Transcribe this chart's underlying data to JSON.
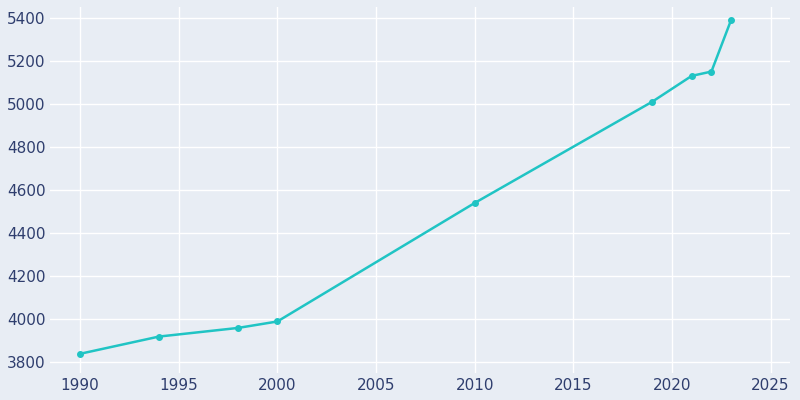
{
  "years": [
    1990,
    1994,
    1998,
    2000,
    2010,
    2019,
    2021,
    2022,
    2023
  ],
  "population": [
    3840,
    3920,
    3960,
    3990,
    4540,
    5010,
    5130,
    5150,
    5390
  ],
  "line_color": "#20C4C4",
  "marker_color": "#20C4C4",
  "background_color": "#E8EDF4",
  "figure_background": "#E8EDF4",
  "tick_label_color": "#2F3E6E",
  "grid_color": "#FFFFFF",
  "xlim": [
    1988.5,
    2026.0
  ],
  "ylim": [
    3750,
    5450
  ],
  "xticks": [
    1990,
    1995,
    2000,
    2005,
    2010,
    2015,
    2020,
    2025
  ],
  "yticks": [
    3800,
    4000,
    4200,
    4400,
    4600,
    4800,
    5000,
    5200,
    5400
  ],
  "line_width": 1.8,
  "marker_size": 4
}
